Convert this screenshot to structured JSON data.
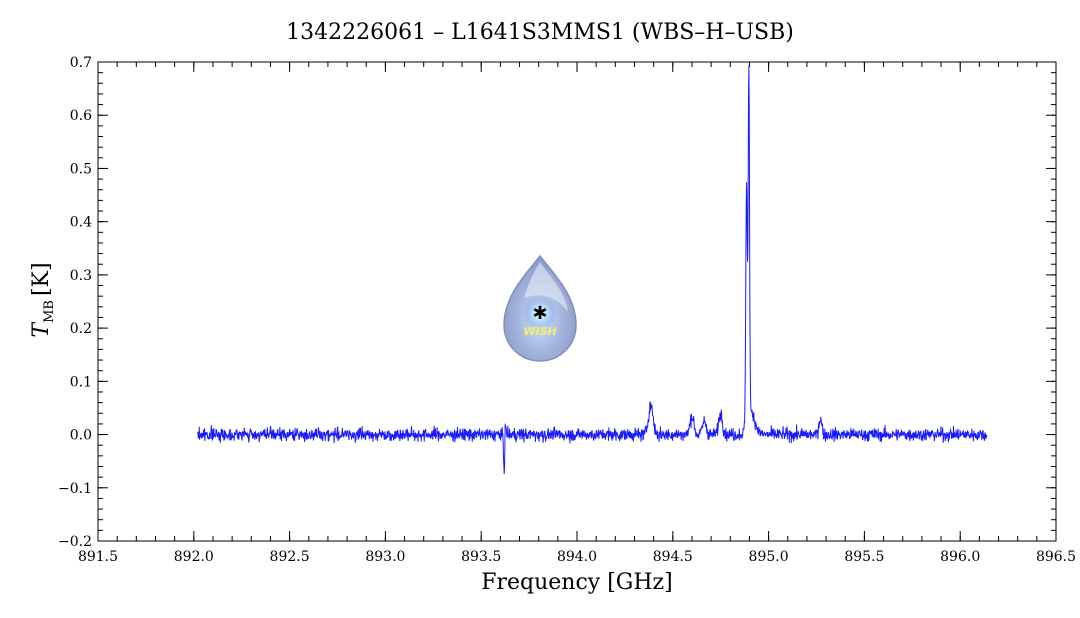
{
  "chart_data": {
    "type": "line",
    "title": "1342226061 – L1641S3MMS1 (WBS–H–USB)",
    "xlabel": "Frequency [GHz]",
    "ylabel_main": "T",
    "ylabel_sub": "MB",
    "ylabel_unit": "[K]",
    "xlim": [
      891.5,
      896.5
    ],
    "ylim": [
      -0.2,
      0.7
    ],
    "xticks": [
      891.5,
      892.0,
      892.5,
      893.0,
      893.5,
      894.0,
      894.5,
      895.0,
      895.5,
      896.0,
      896.5
    ],
    "xtick_labels": [
      "891.5",
      "892.0",
      "892.5",
      "893.0",
      "893.5",
      "894.0",
      "894.5",
      "895.0",
      "895.5",
      "896.0",
      "896.5"
    ],
    "yticks": [
      -0.2,
      -0.1,
      0.0,
      0.1,
      0.2,
      0.3,
      0.4,
      0.5,
      0.6,
      0.7
    ],
    "ytick_labels": [
      "−0.2",
      "−0.1",
      "0.0",
      "0.1",
      "0.2",
      "0.3",
      "0.4",
      "0.5",
      "0.6",
      "0.7"
    ],
    "grid": false,
    "line_color": "#1a1aff",
    "series": [
      {
        "x_range": [
          892.02,
          896.14
        ],
        "baseline": 0.0,
        "noise_rms": 0.006,
        "features": [
          {
            "x": 893.62,
            "y": -0.078,
            "width": 0.003
          },
          {
            "x": 893.625,
            "y": 0.03,
            "width": 0.003
          },
          {
            "x": 894.385,
            "y": 0.055,
            "width": 0.012
          },
          {
            "x": 894.6,
            "y": 0.035,
            "width": 0.01
          },
          {
            "x": 894.665,
            "y": 0.025,
            "width": 0.01
          },
          {
            "x": 894.75,
            "y": 0.04,
            "width": 0.01
          },
          {
            "x": 894.885,
            "y": 0.46,
            "width": 0.004
          },
          {
            "x": 894.897,
            "y": 0.66,
            "width": 0.0035
          },
          {
            "x": 894.91,
            "y": 0.04,
            "width": 0.02
          },
          {
            "x": 895.27,
            "y": 0.03,
            "width": 0.008
          }
        ]
      }
    ]
  },
  "logo": {
    "text": "WISH",
    "colors": {
      "drop": "#9fb0d8",
      "highlight": "#e8ecf8",
      "star": "#fff46a"
    }
  }
}
